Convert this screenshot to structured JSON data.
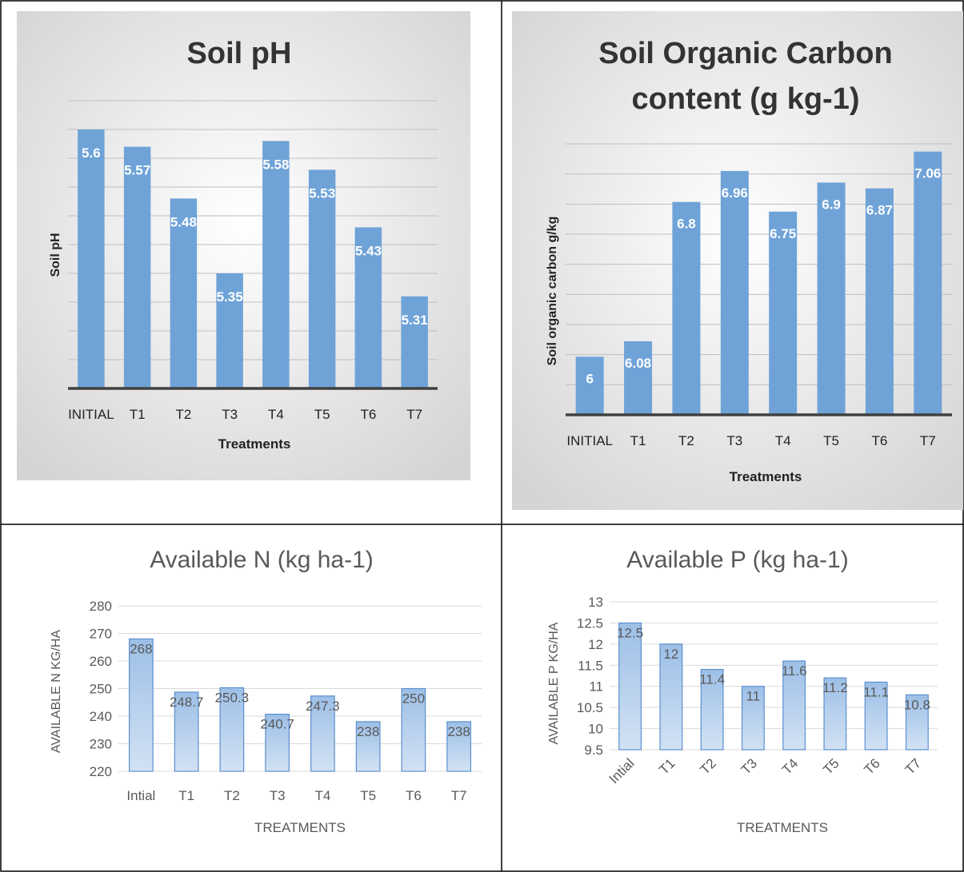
{
  "charts": {
    "ph": {
      "title": "Soil pH",
      "ylabel": "Soil pH",
      "xlabel": "Treatments"
    },
    "soc": {
      "title_line1": "Soil Organic Carbon",
      "title_line2": "content (g kg-1)",
      "ylabel": "Soil organic carbon g/kg",
      "xlabel": "Treatments"
    },
    "n": {
      "title": "Available N (kg ha-1)",
      "ylabel": "AVAILABLE N KG/HA",
      "xlabel": "TREATMENTS"
    },
    "p": {
      "title": "Available P (kg ha-1)",
      "ylabel": "AVAILABLE P KG/HA",
      "xlabel": "TREATMENTS"
    }
  },
  "chart_data": [
    {
      "type": "bar",
      "title": "Soil pH",
      "xlabel": "Treatments",
      "ylabel": "Soil pH",
      "categories": [
        "INITIAL",
        "T1",
        "T2",
        "T3",
        "T4",
        "T5",
        "T6",
        "T7"
      ],
      "values": [
        5.6,
        5.57,
        5.48,
        5.35,
        5.58,
        5.53,
        5.43,
        5.31
      ],
      "labels": [
        "5.6",
        "5.57",
        "5.48",
        "5.35",
        "5.58",
        "5.53",
        "5.43",
        "5.31"
      ],
      "ylim": [
        5.15,
        5.65
      ],
      "grid": true,
      "colors": {
        "bar": "#6fa3d8",
        "background": "#dcdcdc"
      }
    },
    {
      "type": "bar",
      "title": "Soil Organic Carbon content (g kg-1)",
      "xlabel": "Treatments",
      "ylabel": "Soil organic carbon g/kg",
      "categories": [
        "INITIAL",
        "T1",
        "T2",
        "T3",
        "T4",
        "T5",
        "T6",
        "T7"
      ],
      "values": [
        6,
        6.08,
        6.8,
        6.96,
        6.75,
        6.9,
        6.87,
        7.06
      ],
      "labels": [
        "6",
        "6.08",
        "6.8",
        "6.96",
        "6.75",
        "6.9",
        "6.87",
        "7.06"
      ],
      "ylim": [
        5.7,
        7.1
      ],
      "grid": true,
      "colors": {
        "bar": "#6fa3d8",
        "background": "#dcdcdc"
      }
    },
    {
      "type": "bar",
      "title": "Available N (kg ha-1)",
      "xlabel": "TREATMENTS",
      "ylabel": "AVAILABLE N KG/HA",
      "categories": [
        "Intial",
        "T1",
        "T2",
        "T3",
        "T4",
        "T5",
        "T6",
        "T7"
      ],
      "values": [
        268,
        248.7,
        250.3,
        240.7,
        247.3,
        238,
        250,
        238
      ],
      "labels": [
        "268",
        "248.7",
        "250.3",
        "240.7",
        "247.3",
        "238",
        "250",
        "238"
      ],
      "yticks": [
        "220",
        "230",
        "240",
        "250",
        "260",
        "270",
        "280"
      ],
      "ylim": [
        220,
        280
      ],
      "grid": true,
      "colors": {
        "bar": "#a7c5e8",
        "bar_edge": "#5b8fcf"
      }
    },
    {
      "type": "bar",
      "title": "Available P (kg ha-1)",
      "xlabel": "TREATMENTS",
      "ylabel": "AVAILABLE P KG/HA",
      "categories": [
        "Intial",
        "T1",
        "T2",
        "T3",
        "T4",
        "T5",
        "T6",
        "T7"
      ],
      "values": [
        12.5,
        12,
        11.4,
        11,
        11.6,
        11.2,
        11.1,
        10.8
      ],
      "labels": [
        "12.5",
        "12",
        "11.4",
        "11",
        "11.6",
        "11.2",
        "11.1",
        "10.8"
      ],
      "yticks": [
        "9.5",
        "10",
        "10.5",
        "11",
        "11.5",
        "12",
        "12.5",
        "13"
      ],
      "ylim": [
        9.5,
        13
      ],
      "grid": true,
      "colors": {
        "bar": "#a7c5e8",
        "bar_edge": "#5b8fcf"
      }
    }
  ]
}
